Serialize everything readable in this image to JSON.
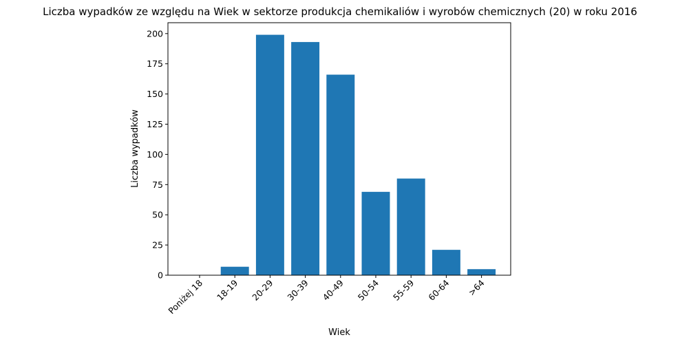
{
  "chart_data": {
    "type": "bar",
    "title": "Liczba wypadków ze względu na Wiek w sektorze produkcja chemikaliów i wyrobów  chemicznych (20) w roku 2016",
    "xlabel": "Wiek",
    "ylabel": "Liczba wypadków",
    "categories": [
      "Poniżej 18",
      "18-19",
      "20-29",
      "30-39",
      "40-49",
      "50-54",
      "55-59",
      "60-64",
      ">64"
    ],
    "values": [
      0,
      7,
      199,
      193,
      166,
      69,
      80,
      21,
      5
    ],
    "ylim": [
      0,
      209
    ],
    "yticks": [
      0,
      25,
      50,
      75,
      100,
      125,
      150,
      175,
      200
    ],
    "bar_color": "#1f77b4",
    "grid": false,
    "legend": "none"
  }
}
